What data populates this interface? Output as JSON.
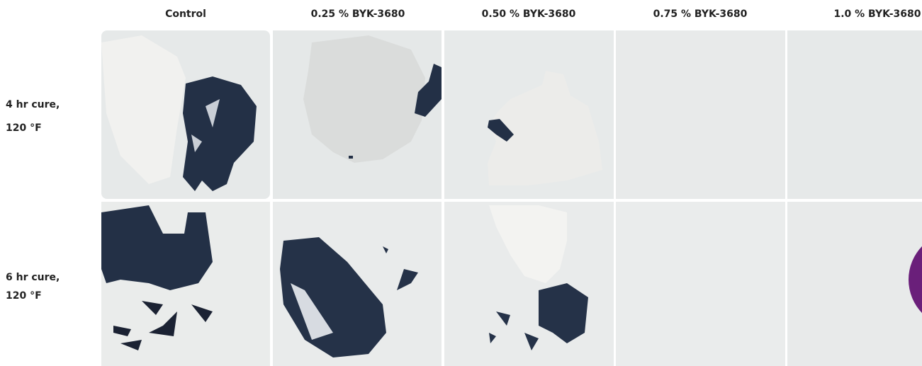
{
  "columns": [
    "Control",
    "0.25 % BYK-3680",
    "0.50 % BYK-3680",
    "0.75 % BYK-3680",
    "1.0 % BYK-3680"
  ],
  "rows": [
    {
      "label_lines": [
        "4 hr cure,",
        "120 °F"
      ]
    },
    {
      "label_lines": [
        "6 hr cure,",
        "120 °F"
      ]
    }
  ]
}
